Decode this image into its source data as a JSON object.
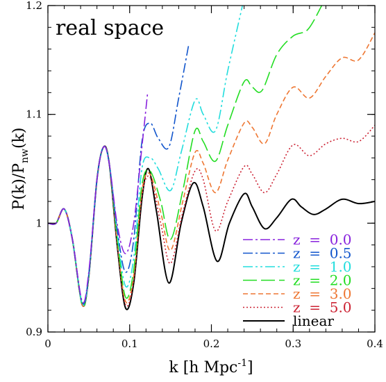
{
  "chart_data": {
    "type": "line",
    "title": "",
    "annotation": "real space",
    "xlabel": {
      "main": "k  [h Mpc",
      "sup": "-1",
      "close": "]"
    },
    "ylabel": {
      "main": "P(k)/P",
      "sub": "nw",
      "close": "(k)"
    },
    "xlim": [
      0,
      0.4
    ],
    "ylim": [
      0.9,
      1.2
    ],
    "x_ticks": [
      0,
      0.1,
      0.2,
      0.3,
      0.4
    ],
    "x_tick_labels": [
      "0",
      "0.1",
      "0.2",
      "0.3",
      "0.4"
    ],
    "y_ticks": [
      0.9,
      1.0,
      1.1,
      1.2
    ],
    "y_tick_labels": [
      "0.9",
      "1",
      "1.1",
      "1.2"
    ],
    "legend_position": "bottom-right",
    "series": [
      {
        "name": "z  =  0.0",
        "color": "#8822dd",
        "dash": "14 4 3 4",
        "points": [
          [
            0,
            1.0
          ],
          [
            0.01,
            1.0
          ],
          [
            0.02,
            1.013
          ],
          [
            0.03,
            0.985
          ],
          [
            0.042,
            0.928
          ],
          [
            0.05,
            0.955
          ],
          [
            0.06,
            1.04
          ],
          [
            0.068,
            1.07
          ],
          [
            0.075,
            1.055
          ],
          [
            0.085,
            0.998
          ],
          [
            0.095,
            0.972
          ],
          [
            0.105,
            1.0
          ],
          [
            0.115,
            1.07
          ],
          [
            0.122,
            1.12
          ]
        ]
      },
      {
        "name": "z  =  0.5",
        "color": "#1155cc",
        "dash": "14 4 3 4",
        "points": [
          [
            0,
            1.0
          ],
          [
            0.01,
            1.0
          ],
          [
            0.02,
            1.013
          ],
          [
            0.03,
            0.985
          ],
          [
            0.042,
            0.927
          ],
          [
            0.05,
            0.953
          ],
          [
            0.06,
            1.04
          ],
          [
            0.068,
            1.07
          ],
          [
            0.075,
            1.055
          ],
          [
            0.085,
            0.993
          ],
          [
            0.095,
            0.955
          ],
          [
            0.105,
            0.985
          ],
          [
            0.115,
            1.075
          ],
          [
            0.125,
            1.092
          ],
          [
            0.135,
            1.078
          ],
          [
            0.148,
            1.07
          ],
          [
            0.16,
            1.115
          ],
          [
            0.172,
            1.163
          ]
        ]
      },
      {
        "name": "z  =  1.0",
        "color": "#22dddd",
        "dash": "14 4 3 4 3 4",
        "points": [
          [
            0,
            1.0
          ],
          [
            0.01,
            1.0
          ],
          [
            0.02,
            1.013
          ],
          [
            0.03,
            0.985
          ],
          [
            0.042,
            0.926
          ],
          [
            0.05,
            0.952
          ],
          [
            0.06,
            1.04
          ],
          [
            0.068,
            1.07
          ],
          [
            0.075,
            1.055
          ],
          [
            0.085,
            0.99
          ],
          [
            0.095,
            0.942
          ],
          [
            0.105,
            0.968
          ],
          [
            0.115,
            1.05
          ],
          [
            0.125,
            1.06
          ],
          [
            0.135,
            1.05
          ],
          [
            0.15,
            1.03
          ],
          [
            0.163,
            1.065
          ],
          [
            0.18,
            1.113
          ],
          [
            0.19,
            1.1
          ],
          [
            0.205,
            1.085
          ],
          [
            0.22,
            1.14
          ],
          [
            0.238,
            1.2
          ]
        ]
      },
      {
        "name": "z  =  2.0",
        "color": "#22dd22",
        "dash": "20 6",
        "points": [
          [
            0,
            1.0
          ],
          [
            0.01,
            1.0
          ],
          [
            0.02,
            1.013
          ],
          [
            0.03,
            0.985
          ],
          [
            0.042,
            0.925
          ],
          [
            0.05,
            0.951
          ],
          [
            0.06,
            1.04
          ],
          [
            0.068,
            1.07
          ],
          [
            0.075,
            1.055
          ],
          [
            0.085,
            0.985
          ],
          [
            0.095,
            0.932
          ],
          [
            0.105,
            0.957
          ],
          [
            0.115,
            1.035
          ],
          [
            0.125,
            1.048
          ],
          [
            0.138,
            1.02
          ],
          [
            0.15,
            0.985
          ],
          [
            0.165,
            1.03
          ],
          [
            0.18,
            1.085
          ],
          [
            0.19,
            1.075
          ],
          [
            0.205,
            1.057
          ],
          [
            0.22,
            1.09
          ],
          [
            0.24,
            1.13
          ],
          [
            0.25,
            1.125
          ],
          [
            0.262,
            1.122
          ],
          [
            0.28,
            1.155
          ],
          [
            0.3,
            1.172
          ],
          [
            0.318,
            1.178
          ],
          [
            0.335,
            1.2
          ]
        ]
      },
      {
        "name": "z  =  3.0",
        "color": "#ee7733",
        "dash": "7 4",
        "points": [
          [
            0,
            1.0
          ],
          [
            0.01,
            1.0
          ],
          [
            0.02,
            1.013
          ],
          [
            0.03,
            0.985
          ],
          [
            0.042,
            0.925
          ],
          [
            0.05,
            0.951
          ],
          [
            0.06,
            1.04
          ],
          [
            0.068,
            1.07
          ],
          [
            0.075,
            1.055
          ],
          [
            0.085,
            0.982
          ],
          [
            0.095,
            0.928
          ],
          [
            0.105,
            0.952
          ],
          [
            0.115,
            1.03
          ],
          [
            0.125,
            1.045
          ],
          [
            0.138,
            1.01
          ],
          [
            0.15,
            0.975
          ],
          [
            0.165,
            1.02
          ],
          [
            0.18,
            1.065
          ],
          [
            0.19,
            1.055
          ],
          [
            0.205,
            1.028
          ],
          [
            0.22,
            1.058
          ],
          [
            0.24,
            1.092
          ],
          [
            0.25,
            1.088
          ],
          [
            0.265,
            1.073
          ],
          [
            0.28,
            1.1
          ],
          [
            0.3,
            1.125
          ],
          [
            0.32,
            1.115
          ],
          [
            0.34,
            1.135
          ],
          [
            0.36,
            1.152
          ],
          [
            0.38,
            1.15
          ],
          [
            0.4,
            1.175
          ]
        ]
      },
      {
        "name": "z  =  5.0",
        "color": "#cc2233",
        "dash": "2 3",
        "points": [
          [
            0,
            1.0
          ],
          [
            0.01,
            1.0
          ],
          [
            0.02,
            1.013
          ],
          [
            0.03,
            0.985
          ],
          [
            0.042,
            0.925
          ],
          [
            0.05,
            0.951
          ],
          [
            0.06,
            1.04
          ],
          [
            0.068,
            1.07
          ],
          [
            0.075,
            1.055
          ],
          [
            0.085,
            0.98
          ],
          [
            0.095,
            0.925
          ],
          [
            0.105,
            0.948
          ],
          [
            0.115,
            1.025
          ],
          [
            0.125,
            1.042
          ],
          [
            0.138,
            1.0
          ],
          [
            0.15,
            0.963
          ],
          [
            0.165,
            1.01
          ],
          [
            0.18,
            1.048
          ],
          [
            0.19,
            1.04
          ],
          [
            0.205,
            0.993
          ],
          [
            0.22,
            1.02
          ],
          [
            0.24,
            1.052
          ],
          [
            0.25,
            1.045
          ],
          [
            0.265,
            1.028
          ],
          [
            0.28,
            1.045
          ],
          [
            0.3,
            1.072
          ],
          [
            0.32,
            1.062
          ],
          [
            0.34,
            1.073
          ],
          [
            0.36,
            1.078
          ],
          [
            0.38,
            1.075
          ],
          [
            0.4,
            1.09
          ]
        ]
      },
      {
        "name": "linear",
        "color": "#000000",
        "dash": "",
        "points": [
          [
            0,
            1.0
          ],
          [
            0.01,
            1.0
          ],
          [
            0.02,
            1.013
          ],
          [
            0.03,
            0.985
          ],
          [
            0.042,
            0.925
          ],
          [
            0.05,
            0.951
          ],
          [
            0.06,
            1.04
          ],
          [
            0.068,
            1.07
          ],
          [
            0.075,
            1.055
          ],
          [
            0.085,
            0.978
          ],
          [
            0.095,
            0.922
          ],
          [
            0.105,
            0.945
          ],
          [
            0.115,
            1.022
          ],
          [
            0.123,
            1.05
          ],
          [
            0.133,
            1.01
          ],
          [
            0.148,
            0.945
          ],
          [
            0.163,
            1.0
          ],
          [
            0.178,
            1.037
          ],
          [
            0.19,
            1.015
          ],
          [
            0.207,
            0.965
          ],
          [
            0.222,
            1.0
          ],
          [
            0.24,
            1.027
          ],
          [
            0.25,
            1.015
          ],
          [
            0.265,
            0.995
          ],
          [
            0.28,
            1.005
          ],
          [
            0.298,
            1.022
          ],
          [
            0.31,
            1.015
          ],
          [
            0.325,
            1.008
          ],
          [
            0.34,
            1.013
          ],
          [
            0.36,
            1.022
          ],
          [
            0.38,
            1.018
          ],
          [
            0.4,
            1.02
          ]
        ]
      }
    ]
  }
}
